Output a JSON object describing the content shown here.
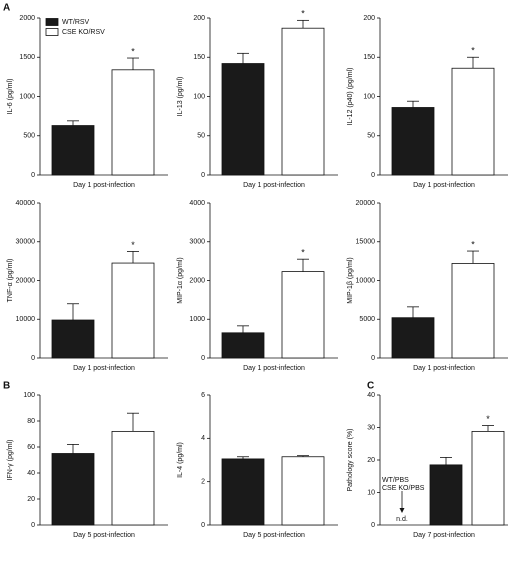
{
  "chart_data": [
    {
      "type": "bar",
      "panel": "A",
      "ylabel": "IL-6 (pg/ml)",
      "xlabel": "Day 1 post-infection",
      "ylim": [
        0,
        2000
      ],
      "yticks": [
        0,
        500,
        1000,
        1500,
        2000
      ],
      "legend": "upper left",
      "annotation": "*",
      "series": [
        {
          "name": "WT/RSV",
          "color": "#1a1a1a",
          "values": [
            630
          ],
          "errors": [
            60
          ]
        },
        {
          "name": "CSE KO/RSV",
          "color": "#ffffff",
          "values": [
            1340
          ],
          "errors": [
            150
          ]
        }
      ]
    },
    {
      "type": "bar",
      "ylabel": "IL-13 (pg/ml)",
      "xlabel": "Day 1 post-infection",
      "ylim": [
        0,
        200
      ],
      "yticks": [
        0,
        50,
        100,
        150,
        200
      ],
      "annotation": "*",
      "series": [
        {
          "color": "#1a1a1a",
          "values": [
            142
          ],
          "errors": [
            13
          ]
        },
        {
          "color": "#ffffff",
          "values": [
            187
          ],
          "errors": [
            10
          ]
        }
      ]
    },
    {
      "type": "bar",
      "ylabel": "IL-12 (p40) (pg/ml)",
      "xlabel": "Day 1 post-infection",
      "ylim": [
        0,
        200
      ],
      "yticks": [
        0,
        50,
        100,
        150,
        200
      ],
      "annotation": "*",
      "series": [
        {
          "color": "#1a1a1a",
          "values": [
            86
          ],
          "errors": [
            8
          ]
        },
        {
          "color": "#ffffff",
          "values": [
            136
          ],
          "errors": [
            14
          ]
        }
      ]
    },
    {
      "type": "bar",
      "ylabel": "TNF-α (pg/ml)",
      "xlabel": "Day 1 post-infection",
      "ylim": [
        0,
        40000
      ],
      "yticks": [
        0,
        10000,
        20000,
        30000,
        40000
      ],
      "annotation": "*",
      "series": [
        {
          "color": "#1a1a1a",
          "values": [
            9800
          ],
          "errors": [
            4200
          ]
        },
        {
          "color": "#ffffff",
          "values": [
            24500
          ],
          "errors": [
            3000
          ]
        }
      ]
    },
    {
      "type": "bar",
      "ylabel": "MIP-1α (pg/ml)",
      "xlabel": "Day 1 post-infection",
      "ylim": [
        0,
        4000
      ],
      "yticks": [
        0,
        1000,
        2000,
        3000,
        4000
      ],
      "annotation": "*",
      "series": [
        {
          "color": "#1a1a1a",
          "values": [
            650
          ],
          "errors": [
            180
          ]
        },
        {
          "color": "#ffffff",
          "values": [
            2230
          ],
          "errors": [
            320
          ]
        }
      ]
    },
    {
      "type": "bar",
      "ylabel": "MIP-1β (pg/ml)",
      "xlabel": "Day 1 post-infection",
      "ylim": [
        0,
        20000
      ],
      "yticks": [
        0,
        5000,
        10000,
        15000,
        20000
      ],
      "annotation": "*",
      "series": [
        {
          "color": "#1a1a1a",
          "values": [
            5200
          ],
          "errors": [
            1400
          ]
        },
        {
          "color": "#ffffff",
          "values": [
            12200
          ],
          "errors": [
            1600
          ]
        }
      ]
    },
    {
      "type": "bar",
      "panel": "B",
      "ylabel": "IFN-γ (pg/ml)",
      "xlabel": "Day 5 post-infection",
      "ylim": [
        0,
        100
      ],
      "yticks": [
        0,
        20,
        40,
        60,
        80,
        100
      ],
      "series": [
        {
          "color": "#1a1a1a",
          "values": [
            55
          ],
          "errors": [
            7
          ]
        },
        {
          "color": "#ffffff",
          "values": [
            72
          ],
          "errors": [
            14
          ]
        }
      ]
    },
    {
      "type": "bar",
      "ylabel": "IL-4 (pg/ml)",
      "xlabel": "Day 5 post-infection",
      "ylim": [
        0,
        6
      ],
      "yticks": [
        0,
        2,
        4,
        6
      ],
      "series": [
        {
          "color": "#1a1a1a",
          "values": [
            3.05
          ],
          "errors": [
            0.1
          ]
        },
        {
          "color": "#ffffff",
          "values": [
            3.15
          ],
          "errors": [
            0.05
          ]
        }
      ]
    },
    {
      "type": "bar",
      "panel": "C",
      "ylabel": "Pathology score (%)",
      "xlabel": "Day 7 post-infection",
      "ylim": [
        0,
        40
      ],
      "yticks": [
        0,
        10,
        20,
        30,
        40
      ],
      "annotation": "*",
      "pbs_labels": [
        "WT/PBS",
        "CSE KO/PBS"
      ],
      "nd": "n.d.",
      "series": [
        {
          "color": "#1a1a1a",
          "values": [
            18.5
          ],
          "errors": [
            2.3
          ]
        },
        {
          "color": "#ffffff",
          "values": [
            28.8
          ],
          "errors": [
            1.8
          ]
        }
      ]
    }
  ]
}
